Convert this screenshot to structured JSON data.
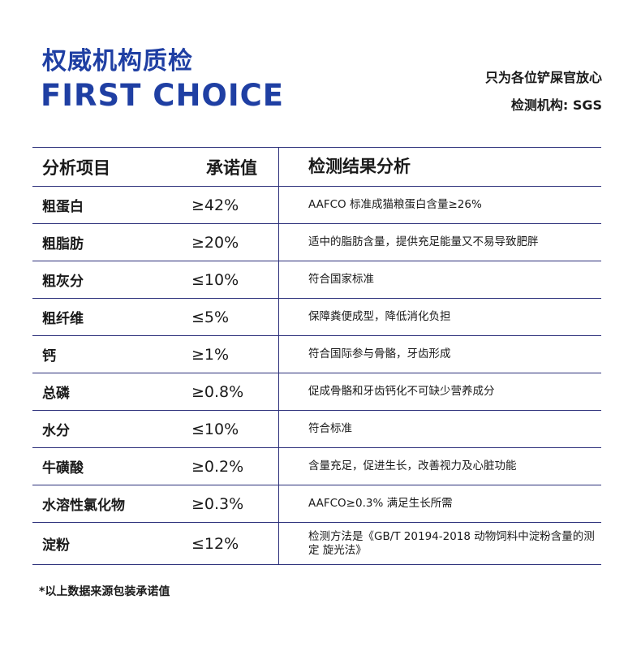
{
  "header": {
    "title_cn": "权威机构质检",
    "title_en": "FIRST CHOICE",
    "tagline": "只为各位铲屎官放心",
    "agency": "检测机构: SGS"
  },
  "table": {
    "columns": [
      "分析项目",
      "承诺值",
      "检测结果分析"
    ],
    "rows": [
      {
        "item": "粗蛋白",
        "value": "≥42%",
        "analysis": "AAFCO 标准成猫粮蛋白含量≥26%"
      },
      {
        "item": "粗脂肪",
        "value": "≥20%",
        "analysis": "适中的脂肪含量，提供充足能量又不易导致肥胖"
      },
      {
        "item": "粗灰分",
        "value": "≤10%",
        "analysis": "符合国家标准"
      },
      {
        "item": "粗纤维",
        "value": "≤5%",
        "analysis": "保障粪便成型，降低消化负担"
      },
      {
        "item": "钙",
        "value": "≥1%",
        "analysis": "符合国际参与骨骼，牙齿形成"
      },
      {
        "item": "总磷",
        "value": "≥0.8%",
        "analysis": "促成骨骼和牙齿钙化不可缺少营养成分"
      },
      {
        "item": "水分",
        "value": "≤10%",
        "analysis": "符合标准"
      },
      {
        "item": "牛磺酸",
        "value": "≥0.2%",
        "analysis": "含量充足，促进生长，改善视力及心脏功能"
      },
      {
        "item": "水溶性氯化物",
        "value": "≥0.3%",
        "analysis": "AAFCO≥0.3% 满足生长所需"
      },
      {
        "item": "淀粉",
        "value": "≤12%",
        "analysis": "检测方法是《GB/T 20194-2018 动物饲料中淀粉含量的测定 旋光法》"
      }
    ]
  },
  "footnote": "*以上数据来源包装承诺值",
  "colors": {
    "accent": "#1f3fa3",
    "rule": "#2b2f7a",
    "text": "#1a1a1a"
  }
}
